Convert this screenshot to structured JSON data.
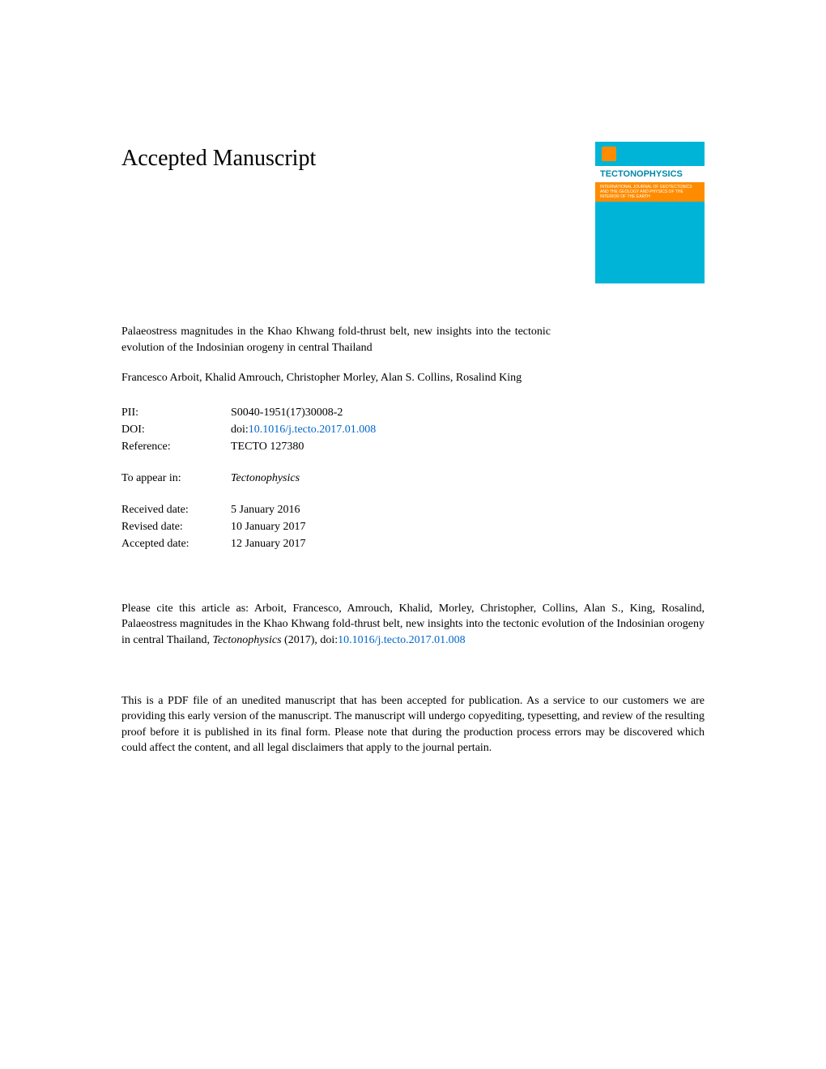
{
  "header": {
    "title": "Accepted Manuscript"
  },
  "journal_cover": {
    "name": "TECTONOPHYSICS",
    "subtitle": "INTERNATIONAL JOURNAL OF GEOTECTONICS AND THE GEOLOGY AND PHYSICS OF THE INTERIOR OF THE EARTH"
  },
  "article": {
    "title": "Palaeostress magnitudes in the Khao Khwang fold-thrust belt, new insights into the tectonic evolution of the Indosinian orogeny in central Thailand",
    "authors": "Francesco Arboit, Khalid Amrouch, Christopher Morley, Alan S. Collins, Rosalind King"
  },
  "metadata": {
    "pii_label": "PII:",
    "pii_value": "S0040-1951(17)30008-2",
    "doi_label": "DOI:",
    "doi_prefix": "doi:",
    "doi_link": "10.1016/j.tecto.2017.01.008",
    "reference_label": "Reference:",
    "reference_value": "TECTO 127380",
    "appear_label": "To appear in:",
    "appear_value": "Tectonophysics",
    "received_label": "Received date:",
    "received_value": "5 January 2016",
    "revised_label": "Revised date:",
    "revised_value": "10 January 2017",
    "accepted_label": "Accepted date:",
    "accepted_value": "12 January 2017"
  },
  "citation": {
    "text_part1": "Please cite this article as: Arboit, Francesco, Amrouch, Khalid, Morley, Christopher, Collins, Alan S., King, Rosalind, Palaeostress magnitudes in the Khao Khwang fold-thrust belt, new insights into the tectonic evolution of the Indosinian orogeny in central Thailand, ",
    "journal_italic": "Tectonophysics",
    "text_part2": " (2017), doi:",
    "doi_link": "10.1016/j.tecto.2017.01.008"
  },
  "disclaimer": {
    "text": "This is a PDF file of an unedited manuscript that has been accepted for publication. As a service to our customers we are providing this early version of the manuscript. The manuscript will undergo copyediting, typesetting, and review of the resulting proof before it is published in its final form. Please note that during the production process errors may be discovered which could affect the content, and all legal disclaimers that apply to the journal pertain."
  },
  "colors": {
    "link_color": "#0066cc",
    "cover_bg": "#00b4d8",
    "cover_orange": "#ff8c00",
    "text_color": "#000000",
    "page_bg": "#ffffff"
  }
}
